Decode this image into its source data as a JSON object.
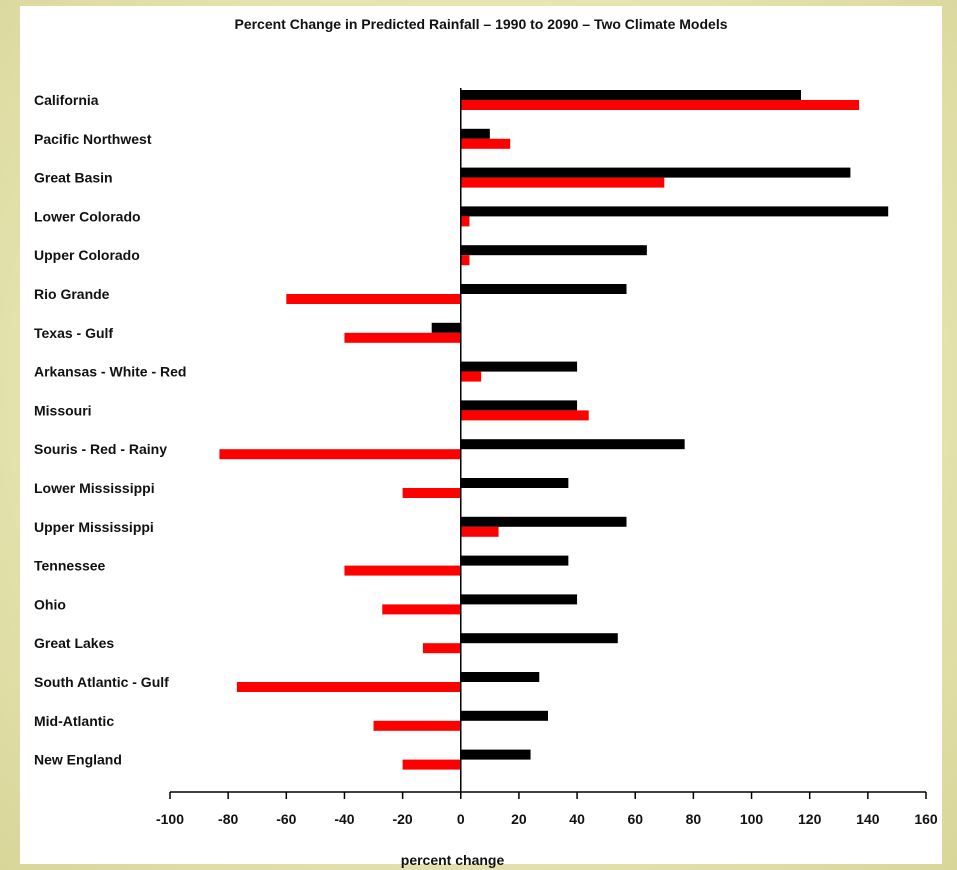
{
  "chart_data": {
    "type": "bar",
    "orientation": "horizontal",
    "title": "Percent Change in  Predicted Rainfall – 1990 to 2090 – Two Climate Models",
    "xlabel": "percent change",
    "ylabel": "",
    "xlim": [
      -100,
      160
    ],
    "xticks": [
      -100,
      -80,
      -60,
      -40,
      -20,
      0,
      20,
      40,
      60,
      80,
      100,
      120,
      140,
      160
    ],
    "grid": false,
    "legend": "none",
    "categories": [
      "California",
      "Pacific Northwest",
      "Great Basin",
      "Lower Colorado",
      "Upper Colorado",
      "Rio Grande",
      "Texas - Gulf",
      "Arkansas - White - Red",
      "Missouri",
      "Souris - Red - Rainy",
      "Lower Mississippi",
      "Upper Mississippi",
      "Tennessee",
      "Ohio",
      "Great Lakes",
      "South Atlantic - Gulf",
      "Mid-Atlantic",
      "New England"
    ],
    "series": [
      {
        "color": "#000000",
        "values": [
          117,
          10,
          134,
          147,
          64,
          57,
          -10,
          40,
          40,
          77,
          37,
          57,
          37,
          40,
          54,
          27,
          30,
          24
        ]
      },
      {
        "color": "#ff0000",
        "values": [
          137,
          17,
          70,
          3,
          3,
          -60,
          -40,
          7,
          44,
          -83,
          -20,
          13,
          -40,
          -27,
          -13,
          -77,
          -30,
          -20
        ]
      }
    ]
  }
}
